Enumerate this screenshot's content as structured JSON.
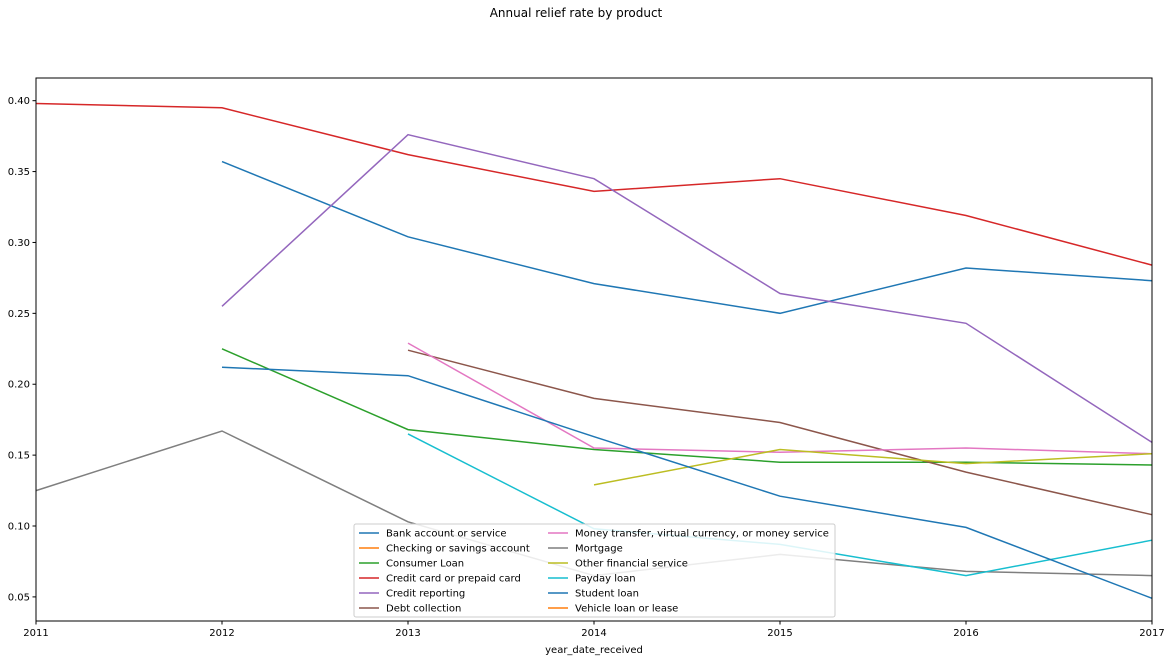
{
  "chart_data": {
    "type": "line",
    "title": "Annual relief rate by product",
    "xlabel": "year_date_received",
    "ylabel": "",
    "xlim": [
      2011,
      2017
    ],
    "ylim": [
      0.033,
      0.416
    ],
    "x_ticks": [
      2011,
      2012,
      2013,
      2014,
      2015,
      2016,
      2017
    ],
    "y_ticks": [
      0.05,
      0.1,
      0.15,
      0.2,
      0.25,
      0.3,
      0.35,
      0.4
    ],
    "y_tick_labels": [
      "0.05",
      "0.10",
      "0.15",
      "0.20",
      "0.25",
      "0.30",
      "0.35",
      "0.40"
    ],
    "grid": false,
    "legend_position": "lower center",
    "series": [
      {
        "name": "Bank account or service",
        "color": "#1f77b4",
        "points": [
          [
            2012,
            0.357
          ],
          [
            2013,
            0.304
          ],
          [
            2014,
            0.271
          ],
          [
            2015,
            0.25
          ],
          [
            2016,
            0.282
          ],
          [
            2017,
            0.273
          ]
        ]
      },
      {
        "name": "Checking or savings account",
        "color": "#ff7f0e",
        "points": []
      },
      {
        "name": "Consumer Loan",
        "color": "#2ca02c",
        "points": [
          [
            2012,
            0.225
          ],
          [
            2013,
            0.168
          ],
          [
            2014,
            0.154
          ],
          [
            2015,
            0.145
          ],
          [
            2016,
            0.145
          ],
          [
            2017,
            0.143
          ]
        ]
      },
      {
        "name": "Credit card or prepaid card",
        "color": "#d62728",
        "points": [
          [
            2011,
            0.398
          ],
          [
            2012,
            0.395
          ],
          [
            2013,
            0.362
          ],
          [
            2014,
            0.336
          ],
          [
            2015,
            0.345
          ],
          [
            2016,
            0.319
          ],
          [
            2017,
            0.284
          ]
        ]
      },
      {
        "name": "Credit reporting",
        "color": "#9467bd",
        "points": [
          [
            2012,
            0.255
          ],
          [
            2013,
            0.376
          ],
          [
            2014,
            0.345
          ],
          [
            2015,
            0.264
          ],
          [
            2016,
            0.243
          ],
          [
            2017,
            0.159
          ]
        ]
      },
      {
        "name": "Debt collection",
        "color": "#8c564b",
        "points": [
          [
            2013,
            0.224
          ],
          [
            2014,
            0.19
          ],
          [
            2015,
            0.173
          ],
          [
            2016,
            0.138
          ],
          [
            2017,
            0.108
          ]
        ]
      },
      {
        "name": "Money transfer, virtual currency, or money service",
        "color": "#e377c2",
        "points": [
          [
            2013,
            0.229
          ],
          [
            2014,
            0.155
          ],
          [
            2015,
            0.152
          ],
          [
            2016,
            0.155
          ],
          [
            2017,
            0.151
          ]
        ]
      },
      {
        "name": "Mortgage",
        "color": "#7f7f7f",
        "points": [
          [
            2011,
            0.125
          ],
          [
            2012,
            0.167
          ],
          [
            2013,
            0.103
          ],
          [
            2014,
            0.065
          ],
          [
            2015,
            0.08
          ],
          [
            2016,
            0.068
          ],
          [
            2017,
            0.065
          ]
        ]
      },
      {
        "name": "Other financial service",
        "color": "#bcbd22",
        "points": [
          [
            2014,
            0.129
          ],
          [
            2015,
            0.154
          ],
          [
            2016,
            0.144
          ],
          [
            2017,
            0.151
          ]
        ]
      },
      {
        "name": "Payday loan",
        "color": "#17becf",
        "points": [
          [
            2013,
            0.165
          ],
          [
            2014,
            0.098
          ],
          [
            2015,
            0.087
          ],
          [
            2016,
            0.065
          ],
          [
            2017,
            0.09
          ]
        ]
      },
      {
        "name": "Student loan",
        "color": "#1f77b4",
        "points": [
          [
            2012,
            0.212
          ],
          [
            2013,
            0.206
          ],
          [
            2014,
            0.163
          ],
          [
            2015,
            0.121
          ],
          [
            2016,
            0.099
          ],
          [
            2017,
            0.049
          ]
        ]
      },
      {
        "name": "Vehicle loan or lease",
        "color": "#ff7f0e",
        "points": []
      }
    ]
  }
}
